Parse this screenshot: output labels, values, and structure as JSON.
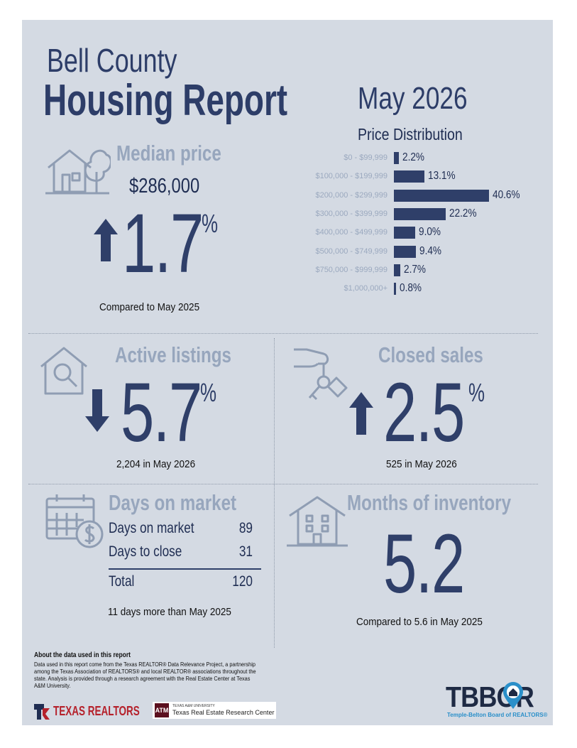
{
  "header": {
    "county": "Bell County",
    "title": "Housing Report",
    "period": "May 2026"
  },
  "median_price": {
    "label": "Median price",
    "value": "$286,000",
    "change": "1.7",
    "pct_sign": "%",
    "direction": "up",
    "caption": "Compared to May 2025",
    "icon": "house-tree-icon"
  },
  "price_distribution": {
    "title": "Price Distribution",
    "chart_data": {
      "type": "bar",
      "orientation": "horizontal",
      "title": "Price Distribution",
      "categories": [
        "$0 - $99,999",
        "$100,000 - $199,999",
        "$200,000 - $299,999",
        "$300,000 - $399,999",
        "$400,000 - $499,999",
        "$500,000 - $749,999",
        "$750,000 - $999,999",
        "$1,000,000+"
      ],
      "values": [
        2.2,
        13.1,
        40.6,
        22.2,
        9.0,
        9.4,
        2.7,
        0.8
      ],
      "value_labels": [
        "2.2%",
        "13.1%",
        "40.6%",
        "22.2%",
        "9.0%",
        "9.4%",
        "2.7%",
        "0.8%"
      ],
      "bar_color": "#2f3f69"
    }
  },
  "active_listings": {
    "label": "Active listings",
    "change": "5.7",
    "pct_sign": "%",
    "direction": "down",
    "caption": "2,204 in May 2026",
    "icon": "house-magnifier-icon"
  },
  "closed_sales": {
    "label": "Closed sales",
    "change": "2.5",
    "pct_sign": "%",
    "direction": "up",
    "caption": "525 in May 2026",
    "icon": "hand-keys-icon"
  },
  "days_on_market": {
    "label": "Days on market",
    "rows": [
      {
        "label": "Days on market",
        "value": "89"
      },
      {
        "label": "Days to close",
        "value": "31"
      }
    ],
    "total_label": "Total",
    "total_value": "120",
    "caption": "11 days more than May 2025",
    "icon": "calendar-dollar-icon"
  },
  "months_inventory": {
    "label": "Months of inventory",
    "value": "5.2",
    "caption": "Compared to 5.6 in May 2025",
    "icon": "apartment-building-icon"
  },
  "footer": {
    "about_title": "About the data used in this report",
    "about_text": "Data used in this report come from the Texas REALTOR® Data Relevance Project, a partnership among the Texas Association of REALTORS® and local REALTOR® associations throughout the state. Analysis is provided through a research agreement with the Real Estate Center at Texas A&M University.",
    "texas_realtors": "TEXAS REALTORS",
    "tamu_small": "TEXAS A&M UNIVERSITY",
    "tamu_center": "Texas Real Estate Research Center",
    "tbbor": "TBBOR",
    "tbbor_sub": "Temple-Belton Board of REALTORS®"
  },
  "colors": {
    "background": "#d4dae3",
    "navy": "#2f3f69",
    "muted": "#97a6bd",
    "accent_red": "#b5212b",
    "accent_blue": "#2a8fc9"
  }
}
